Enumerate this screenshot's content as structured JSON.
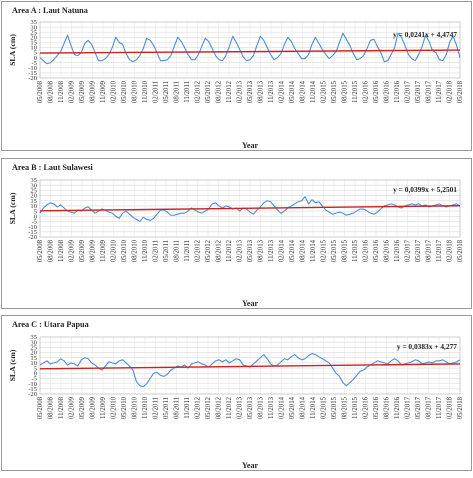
{
  "chart_data": [
    {
      "type": "line",
      "title": "Area A : Laut Natuna",
      "xlabel": "Year",
      "ylabel": "SLA (cm)",
      "ylim": [
        -20,
        35
      ],
      "yticks": [
        -20,
        -15,
        -10,
        -5,
        0,
        5,
        10,
        15,
        20,
        25,
        30,
        35
      ],
      "equation": "y = 0,0241x + 4,4747",
      "trend": {
        "slope": 0.0241,
        "intercept": 4.4747
      },
      "grid": true,
      "colors": {
        "series": "#4f8fd1",
        "trend": "#cc2222"
      },
      "series_values": [
        0,
        -3,
        -6,
        -5,
        -2,
        2,
        6,
        14,
        22,
        12,
        3,
        2,
        5,
        14,
        17,
        13,
        5,
        -3,
        -3,
        -1,
        3,
        10,
        20,
        15,
        13,
        4,
        -2,
        -4,
        -2,
        2,
        9,
        19,
        17,
        12,
        5,
        -3,
        -3,
        -2,
        2,
        11,
        20,
        16,
        10,
        3,
        -2,
        -2,
        3,
        11,
        19,
        16,
        9,
        2,
        -2,
        -3,
        2,
        11,
        21,
        15,
        8,
        1,
        -3,
        -2,
        2,
        12,
        21,
        17,
        10,
        3,
        -2,
        0,
        4,
        13,
        20,
        16,
        9,
        4,
        -1,
        -1,
        3,
        13,
        20,
        14,
        8,
        3,
        -1,
        2,
        6,
        15,
        24,
        18,
        12,
        4,
        -2,
        -1,
        2,
        9,
        17,
        18,
        11,
        5,
        -4,
        -3,
        3,
        10,
        24,
        20,
        12,
        3,
        -1,
        -3,
        3,
        11,
        22,
        16,
        7,
        5,
        -2,
        -3,
        3,
        15,
        21,
        12,
        0
      ]
    },
    {
      "type": "line",
      "title": "Area B : Laut Sulawesi",
      "xlabel": "Year",
      "ylabel": "SLA (cm)",
      "ylim": [
        -20,
        35
      ],
      "yticks": [
        -20,
        -15,
        -10,
        -5,
        0,
        5,
        10,
        15,
        20,
        25,
        30,
        35
      ],
      "equation": "y = 0,0399x + 5,2501",
      "trend": {
        "slope": 0.0399,
        "intercept": 5.2501
      },
      "grid": true,
      "colors": {
        "series": "#4f8fd1",
        "trend": "#cc2222"
      },
      "series_values": [
        3,
        8,
        11,
        13,
        12,
        9,
        11,
        8,
        5,
        4,
        3,
        6,
        5,
        8,
        9,
        6,
        3,
        5,
        7,
        6,
        4,
        3,
        0,
        -2,
        3,
        5,
        2,
        -1,
        -3,
        -5,
        -1,
        -3,
        -4,
        -2,
        2,
        6,
        6,
        4,
        1,
        1,
        2,
        3,
        3,
        5,
        8,
        6,
        4,
        3,
        5,
        7,
        12,
        13,
        10,
        8,
        10,
        9,
        7,
        8,
        5,
        8,
        7,
        4,
        2,
        6,
        9,
        13,
        15,
        14,
        10,
        6,
        3,
        5,
        8,
        10,
        12,
        14,
        15,
        19,
        12,
        16,
        13,
        14,
        10,
        6,
        4,
        2,
        3,
        4,
        3,
        1,
        2,
        3,
        5,
        7,
        7,
        5,
        3,
        2,
        4,
        7,
        10,
        11,
        12,
        11,
        9,
        8,
        10,
        11,
        12,
        11,
        12,
        10,
        11,
        9,
        10,
        11,
        12,
        10,
        9,
        10,
        11,
        12,
        10
      ]
    },
    {
      "type": "line",
      "title": "Area C : Utara Papua",
      "xlabel": "Year",
      "ylabel": "SLA (cm)",
      "ylim": [
        -20,
        35
      ],
      "yticks": [
        -20,
        -15,
        -10,
        -5,
        0,
        5,
        10,
        15,
        20,
        25,
        30,
        35
      ],
      "equation": "y = 0,0383x + 4,277",
      "trend": {
        "slope": 0.0383,
        "intercept": 4.277
      },
      "grid": true,
      "colors": {
        "series": "#4f8fd1",
        "trend": "#cc2222"
      },
      "series_values": [
        8,
        10,
        12,
        9,
        10,
        11,
        14,
        12,
        8,
        10,
        9,
        7,
        13,
        15,
        14,
        10,
        8,
        5,
        3,
        7,
        11,
        10,
        9,
        12,
        13,
        10,
        7,
        3,
        -8,
        -12,
        -13,
        -10,
        -5,
        0,
        1,
        -2,
        -3,
        -1,
        3,
        5,
        7,
        6,
        8,
        5,
        9,
        10,
        11,
        9,
        8,
        6,
        9,
        12,
        13,
        11,
        13,
        10,
        12,
        14,
        13,
        8,
        7,
        6,
        9,
        12,
        15,
        18,
        14,
        9,
        7,
        8,
        11,
        14,
        13,
        16,
        18,
        15,
        13,
        14,
        17,
        19,
        18,
        16,
        14,
        12,
        10,
        5,
        0,
        -3,
        -9,
        -12,
        -9,
        -6,
        -2,
        2,
        3,
        6,
        8,
        10,
        12,
        11,
        10,
        9,
        12,
        14,
        12,
        8,
        9,
        10,
        11,
        13,
        12,
        9,
        10,
        11,
        10,
        12,
        12,
        13,
        11,
        9,
        10,
        11,
        13
      ]
    }
  ],
  "x_tick_labels": [
    "05/2008",
    "08/2008",
    "11/2008",
    "02/2009",
    "05/2009",
    "08/2009",
    "11/2009",
    "02/2010",
    "05/2010",
    "08/2010",
    "11/2010",
    "02/2011",
    "05/2011",
    "08/2011",
    "11/2011",
    "02/2012",
    "05/2012",
    "08/2012",
    "11/2012",
    "02/2013",
    "05/2013",
    "08/2013",
    "11/2013",
    "02/2014",
    "05/2014",
    "08/2014",
    "11/2014",
    "02/2015",
    "05/2015",
    "08/2015",
    "11/2015",
    "02/2016",
    "05/2016",
    "08/2016",
    "11/2016",
    "02/2017",
    "05/2017",
    "08/2017",
    "11/2017",
    "02/2018",
    "05/2018"
  ]
}
